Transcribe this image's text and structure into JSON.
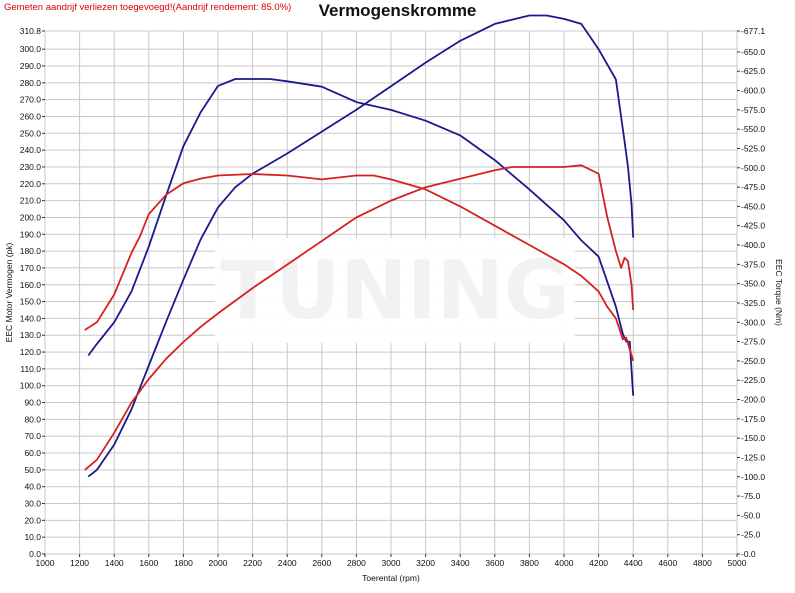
{
  "header": {
    "note": "Gemeten aandrijf verliezen toegevoegd!(Aandrijf rendement: 85.0%)",
    "title": "Vermogenskromme"
  },
  "colors": {
    "stock": "#1a1a8c",
    "tuned": "#d42222",
    "grid": "#c8c8c8",
    "plot_bg": "#ffffff"
  },
  "chart_data": {
    "type": "line",
    "title": "Vermogenskromme",
    "xlabel": "Toerental (rpm)",
    "ylabel": "EEC Motor Vermogen (pk)",
    "y2label": "EEC Torque (Nm)",
    "xlim": [
      1000,
      5000
    ],
    "ylim": [
      0,
      310.8
    ],
    "y2lim": [
      0,
      677.1
    ],
    "grid": true,
    "x_ticks": [
      "1000",
      "1200",
      "1400",
      "1600",
      "1800",
      "2000",
      "2200",
      "2400",
      "2600",
      "2800",
      "3000",
      "3200",
      "3400",
      "3600",
      "3800",
      "4000",
      "4200",
      "4400",
      "4600",
      "4800",
      "5000"
    ],
    "y_ticks": [
      "0.0",
      "10.0",
      "20.0",
      "30.0",
      "40.0",
      "50.0",
      "60.0",
      "70.0",
      "80.0",
      "90.0",
      "100.0",
      "110.0",
      "120.0",
      "130.0",
      "140.0",
      "150.0",
      "160.0",
      "170.0",
      "180.0",
      "190.0",
      "200.0",
      "210.0",
      "220.0",
      "230.0",
      "240.0",
      "250.0",
      "260.0",
      "270.0",
      "280.0",
      "290.0",
      "300.0",
      "310.8"
    ],
    "y2_ticks": [
      "0.0",
      "25.0",
      "50.0",
      "75.0",
      "100.0",
      "125.0",
      "150.0",
      "175.0",
      "200.0",
      "225.0",
      "250.0",
      "275.0",
      "300.0",
      "325.0",
      "350.0",
      "375.0",
      "400.0",
      "425.0",
      "450.0",
      "475.0",
      "500.0",
      "525.0",
      "550.0",
      "575.0",
      "600.0",
      "625.0",
      "650.0",
      "677.1"
    ],
    "series": [
      {
        "color": "#1a1a8c",
        "axis": "left",
        "x": [
          1250,
          1300,
          1400,
          1500,
          1600,
          1700,
          1800,
          1900,
          2000,
          2100,
          2200,
          2400,
          2600,
          2800,
          3000,
          3200,
          3400,
          3600,
          3800,
          3900,
          4000,
          4100,
          4200,
          4300,
          4350,
          4370,
          4390,
          4400
        ],
        "y": [
          46,
          50,
          65,
          86,
          112,
          138,
          163,
          187,
          206,
          218,
          226,
          238,
          251,
          264,
          278,
          292,
          305,
          315,
          320,
          320,
          318,
          315,
          300,
          282,
          245,
          230,
          208,
          188
        ]
      },
      {
        "color": "#1a1a8c",
        "axis": "right",
        "x": [
          1250,
          1300,
          1400,
          1450,
          1500,
          1600,
          1700,
          1800,
          1900,
          2000,
          2100,
          2200,
          2300,
          2400,
          2600,
          2800,
          3000,
          3200,
          3400,
          3600,
          3800,
          4000,
          4100,
          4200,
          4300,
          4340,
          4360,
          4380,
          4400
        ],
        "y": [
          257,
          272,
          300,
          320,
          340,
          398,
          464,
          528,
          572,
          606,
          615,
          615,
          615,
          612,
          605,
          585,
          575,
          561,
          542,
          510,
          472,
          432,
          406,
          385,
          320,
          285,
          275,
          275,
          205
        ]
      },
      {
        "color": "#d42222",
        "axis": "left",
        "x": [
          1230,
          1300,
          1400,
          1500,
          1600,
          1700,
          1800,
          1900,
          2000,
          2200,
          2400,
          2600,
          2800,
          3000,
          3200,
          3400,
          3600,
          3700,
          3800,
          4000,
          4100,
          4200,
          4250,
          4300,
          4330,
          4350,
          4370,
          4390,
          4400
        ],
        "y": [
          50,
          56,
          72,
          90,
          104,
          116,
          126,
          135,
          143,
          158,
          172,
          186,
          200,
          210,
          218,
          223,
          228,
          230,
          230,
          230,
          231,
          226,
          200,
          180,
          170,
          176,
          174,
          160,
          145
        ]
      },
      {
        "color": "#d42222",
        "axis": "right",
        "x": [
          1230,
          1300,
          1400,
          1500,
          1550,
          1600,
          1700,
          1800,
          1900,
          2000,
          2200,
          2400,
          2600,
          2800,
          2900,
          3000,
          3200,
          3400,
          3600,
          3800,
          4000,
          4100,
          4200,
          4250,
          4300,
          4340,
          4360,
          4380,
          4400
        ],
        "y": [
          290,
          300,
          336,
          390,
          412,
          440,
          465,
          480,
          486,
          490,
          492,
          490,
          485,
          490,
          490,
          485,
          472,
          450,
          425,
          400,
          375,
          360,
          340,
          320,
          305,
          278,
          280,
          265,
          250
        ]
      }
    ]
  },
  "watermark": {
    "text": "TUNING"
  }
}
